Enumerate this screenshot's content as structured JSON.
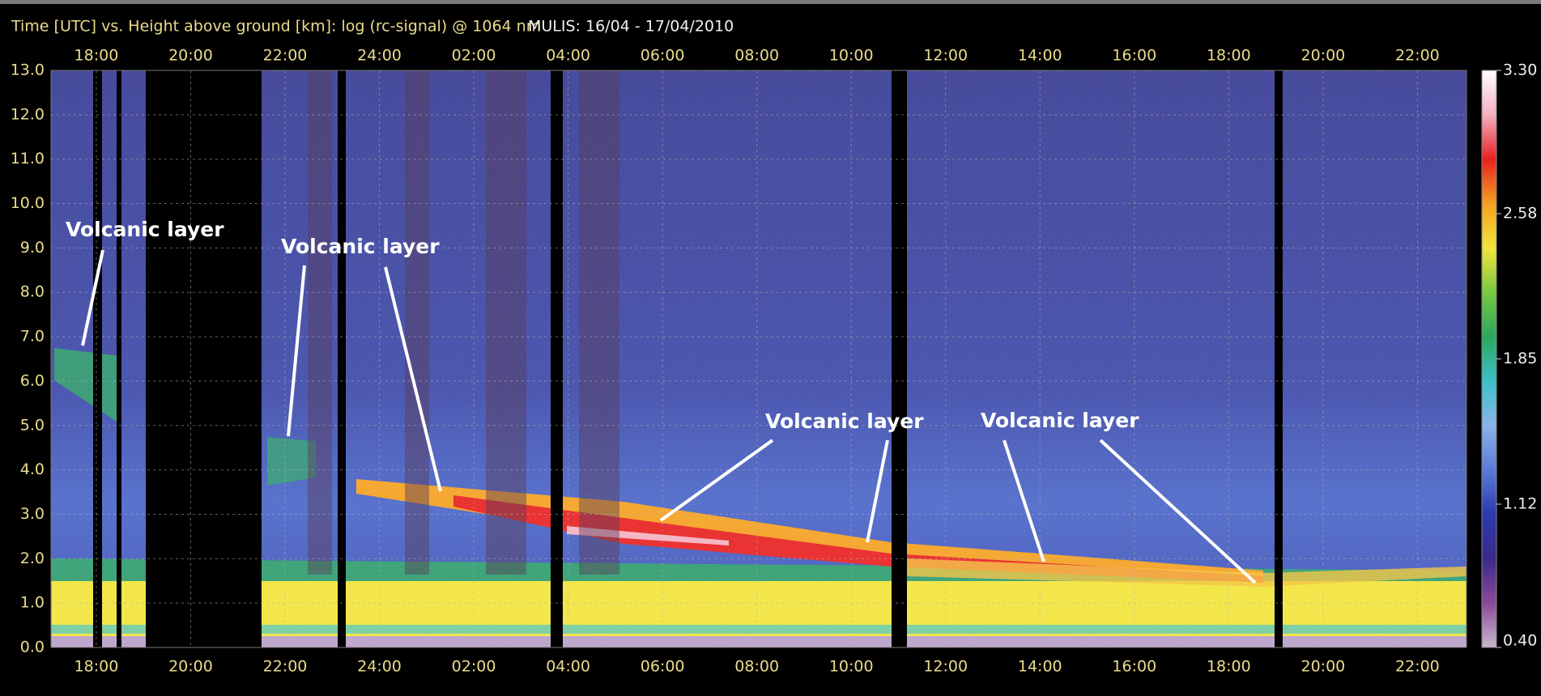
{
  "chart_data": {
    "type": "heatmap",
    "title": "Time [UTC] vs. Height above ground [km]: log (rc-signal) @ 1064 nm",
    "subtitle": "MULIS: 16/04 - 17/04/2010",
    "xlim": [
      17.04,
      47.04
    ],
    "xticks": [
      {
        "value": 18,
        "label": "18:00"
      },
      {
        "value": 20,
        "label": "20:00"
      },
      {
        "value": 22,
        "label": "22:00"
      },
      {
        "value": 24,
        "label": "24:00"
      },
      {
        "value": 26,
        "label": "02:00"
      },
      {
        "value": 28,
        "label": "04:00"
      },
      {
        "value": 30,
        "label": "06:00"
      },
      {
        "value": 32,
        "label": "08:00"
      },
      {
        "value": 34,
        "label": "10:00"
      },
      {
        "value": 36,
        "label": "12:00"
      },
      {
        "value": 38,
        "label": "14:00"
      },
      {
        "value": 40,
        "label": "16:00"
      },
      {
        "value": 42,
        "label": "18:00"
      },
      {
        "value": 44,
        "label": "20:00"
      },
      {
        "value": 46,
        "label": "22:00"
      }
    ],
    "ylim": [
      0,
      13
    ],
    "yticks": [
      {
        "value": 0,
        "label": "0.0"
      },
      {
        "value": 1,
        "label": "1.0"
      },
      {
        "value": 2,
        "label": "2.0"
      },
      {
        "value": 3,
        "label": "3.0"
      },
      {
        "value": 4,
        "label": "4.0"
      },
      {
        "value": 5,
        "label": "5.0"
      },
      {
        "value": 6,
        "label": "6.0"
      },
      {
        "value": 7,
        "label": "7.0"
      },
      {
        "value": 8,
        "label": "8.0"
      },
      {
        "value": 9,
        "label": "9.0"
      },
      {
        "value": 10,
        "label": "10.0"
      },
      {
        "value": 11,
        "label": "11.0"
      },
      {
        "value": 12,
        "label": "12.0"
      },
      {
        "value": 13,
        "label": "13.0"
      }
    ],
    "grid": true,
    "colorbar": {
      "lim": [
        0.4,
        3.3
      ],
      "ticks": [
        {
          "value": 0.4,
          "label": "0.40"
        },
        1.12,
        1.85,
        2.58,
        {
          "value": 3.3,
          "label": "3.30"
        }
      ],
      "colors": [
        "#c8b6cc",
        "#8a4a9a",
        "#3a2a8a",
        "#2c3ab0",
        "#5a7ad8",
        "#8ab4e8",
        "#3cc0c8",
        "#2aa860",
        "#7ac840",
        "#f2e43a",
        "#f4a020",
        "#e82020",
        "#f4b0c0",
        "#ffffff"
      ]
    },
    "annotations": [
      "Volcanic layer",
      "Volcanic layer",
      "Volcanic layer",
      "Volcanic layer"
    ]
  }
}
